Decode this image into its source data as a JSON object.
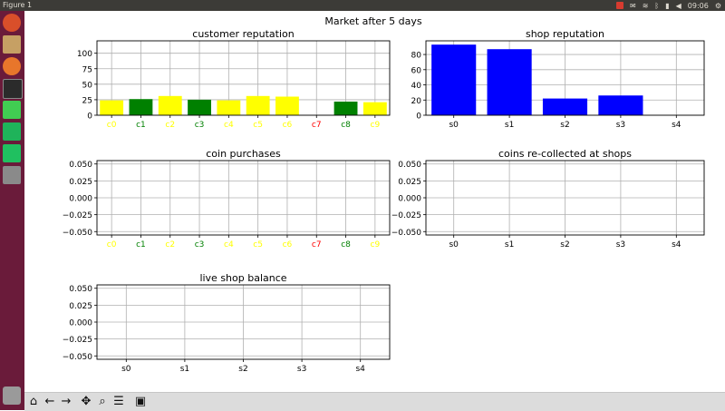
{
  "window": {
    "title": "Figure 1"
  },
  "system_tray": {
    "clock": "09:06",
    "icons": [
      "indicator-icon",
      "mail-icon",
      "wifi-icon",
      "bluetooth-icon",
      "battery-icon",
      "volume-icon",
      "settings-icon"
    ]
  },
  "launcher": {
    "icons": [
      "ubuntu-home-icon",
      "files-icon",
      "firefox-icon",
      "terminal-icon",
      "qt-creator-icon",
      "pycharm-icon",
      "pycharm-alt-icon",
      "unknown-app-icon",
      "trash-icon"
    ]
  },
  "toolbar": {
    "icons": [
      "home-icon",
      "back-icon",
      "forward-icon",
      "pan-icon",
      "zoom-icon",
      "configure-subplots-icon",
      "save-icon"
    ]
  },
  "figure": {
    "suptitle": "Market after 5 days"
  },
  "colors": {
    "yellow": "#ffff00",
    "green": "#008000",
    "red": "#ff0000",
    "blue": "#0000ff"
  },
  "chart_data": [
    {
      "type": "bar",
      "title": "customer reputation",
      "categories": [
        "c0",
        "c1",
        "c2",
        "c3",
        "c4",
        "c5",
        "c6",
        "c7",
        "c8",
        "c9"
      ],
      "values": [
        24,
        26,
        31,
        25,
        24,
        31,
        30,
        0,
        22,
        21
      ],
      "bar_colors": [
        "#ffff00",
        "#008000",
        "#ffff00",
        "#008000",
        "#ffff00",
        "#ffff00",
        "#ffff00",
        "#ff0000",
        "#008000",
        "#ffff00"
      ],
      "label_colors": [
        "#ffff00",
        "#008000",
        "#ffff00",
        "#008000",
        "#ffff00",
        "#ffff00",
        "#ffff00",
        "#ff0000",
        "#008000",
        "#ffff00"
      ],
      "ylim": [
        0,
        120
      ],
      "yticks": [
        "0",
        "25",
        "50",
        "75",
        "100"
      ],
      "grid": true
    },
    {
      "type": "bar",
      "title": "shop reputation",
      "categories": [
        "s0",
        "s1",
        "s2",
        "s3",
        "s4"
      ],
      "values": [
        93,
        87,
        22,
        26,
        0
      ],
      "bar_color": "#0000ff",
      "ylim": [
        0,
        98
      ],
      "yticks": [
        "0",
        "20",
        "40",
        "60",
        "80"
      ],
      "grid": true
    },
    {
      "type": "bar",
      "title": "coin purchases",
      "categories": [
        "c0",
        "c1",
        "c2",
        "c3",
        "c4",
        "c5",
        "c6",
        "c7",
        "c8",
        "c9"
      ],
      "values": [
        0,
        0,
        0,
        0,
        0,
        0,
        0,
        0,
        0,
        0
      ],
      "label_colors": [
        "#ffff00",
        "#008000",
        "#ffff00",
        "#008000",
        "#ffff00",
        "#ffff00",
        "#ffff00",
        "#ff0000",
        "#008000",
        "#ffff00"
      ],
      "ylim": [
        -0.055,
        0.055
      ],
      "yticks": [
        "0.050",
        "0.025",
        "0.000",
        "−0.025",
        "−0.050"
      ],
      "grid": true
    },
    {
      "type": "bar",
      "title": "coins re-collected at shops",
      "categories": [
        "s0",
        "s1",
        "s2",
        "s3",
        "s4"
      ],
      "values": [
        0,
        0,
        0,
        0,
        0
      ],
      "ylim": [
        -0.055,
        0.055
      ],
      "yticks": [
        "0.050",
        "0.025",
        "0.000",
        "−0.025",
        "−0.050"
      ],
      "grid": true
    },
    {
      "type": "bar",
      "title": "live shop balance",
      "categories": [
        "s0",
        "s1",
        "s2",
        "s3",
        "s4"
      ],
      "values": [
        0,
        0,
        0,
        0,
        0
      ],
      "ylim": [
        -0.055,
        0.055
      ],
      "yticks": [
        "0.050",
        "0.025",
        "0.000",
        "−0.025",
        "−0.050"
      ],
      "grid": true
    }
  ]
}
